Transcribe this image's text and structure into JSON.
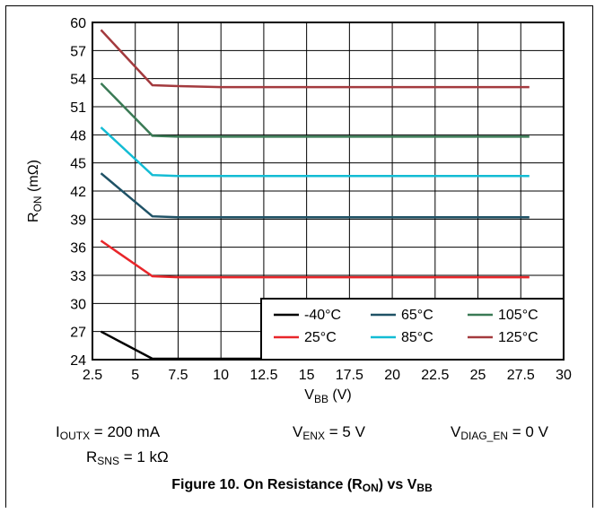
{
  "chart_data": {
    "type": "line",
    "xlabel_main": "V",
    "xlabel_sub": "BB",
    "xlabel_unit": " (V)",
    "ylabel_main": "R",
    "ylabel_sub": "ON",
    "ylabel_unit": " (mΩ)",
    "xlim": [
      2.5,
      30
    ],
    "ylim": [
      24,
      60
    ],
    "xticks": [
      "2.5",
      "5",
      "7.5",
      "10",
      "12.5",
      "15",
      "17.5",
      "20",
      "22.5",
      "25",
      "27.5",
      "30"
    ],
    "yticks": [
      "24",
      "27",
      "30",
      "33",
      "36",
      "39",
      "42",
      "45",
      "48",
      "51",
      "54",
      "57",
      "60"
    ],
    "grid": true,
    "legend_position": "bottom-right",
    "series": [
      {
        "name": "-40°C",
        "color": "#000000",
        "x": [
          3,
          6,
          7.5,
          10,
          15,
          20,
          25,
          28
        ],
        "y": [
          27.0,
          24.1,
          24.1,
          24.1,
          24.1,
          24.1,
          24.1,
          24.1
        ]
      },
      {
        "name": "25°C",
        "color": "#e8262a",
        "x": [
          3,
          6,
          7.5,
          10,
          15,
          20,
          25,
          28
        ],
        "y": [
          36.7,
          32.9,
          32.8,
          32.8,
          32.8,
          32.8,
          32.8,
          32.8
        ]
      },
      {
        "name": "65°C",
        "color": "#1f5266",
        "x": [
          3,
          6,
          7.5,
          10,
          15,
          20,
          25,
          28
        ],
        "y": [
          43.9,
          39.3,
          39.2,
          39.2,
          39.2,
          39.2,
          39.2,
          39.2
        ]
      },
      {
        "name": "85°C",
        "color": "#13bcd4",
        "x": [
          3,
          6,
          7.5,
          10,
          15,
          20,
          25,
          28
        ],
        "y": [
          48.8,
          43.7,
          43.6,
          43.6,
          43.6,
          43.6,
          43.6,
          43.6
        ]
      },
      {
        "name": "105°C",
        "color": "#3a7a55",
        "x": [
          3,
          6,
          7.5,
          10,
          15,
          20,
          25,
          28
        ],
        "y": [
          53.5,
          47.9,
          47.8,
          47.8,
          47.8,
          47.8,
          47.8,
          47.8
        ]
      },
      {
        "name": "125°C",
        "color": "#a33a3e",
        "x": [
          3,
          6,
          7.5,
          10,
          15,
          20,
          25,
          28
        ],
        "y": [
          59.2,
          53.3,
          53.2,
          53.1,
          53.1,
          53.1,
          53.1,
          53.1
        ]
      }
    ]
  },
  "conditions": {
    "ioutx": {
      "main": "I",
      "sub": "OUTX",
      "rest": " = 200 mA"
    },
    "venx": {
      "main": "V",
      "sub": "ENX",
      "rest": " = 5 V"
    },
    "vdiag": {
      "main": "V",
      "sub": "DIAG_EN",
      "rest": " = 0 V"
    },
    "rsns": {
      "main": "R",
      "sub": "SNS",
      "rest": " = 1 kΩ"
    }
  },
  "caption": {
    "main": "Figure 10. On Resistance (R",
    "sub1": "ON",
    "mid": ") vs V",
    "sub2": "BB"
  }
}
